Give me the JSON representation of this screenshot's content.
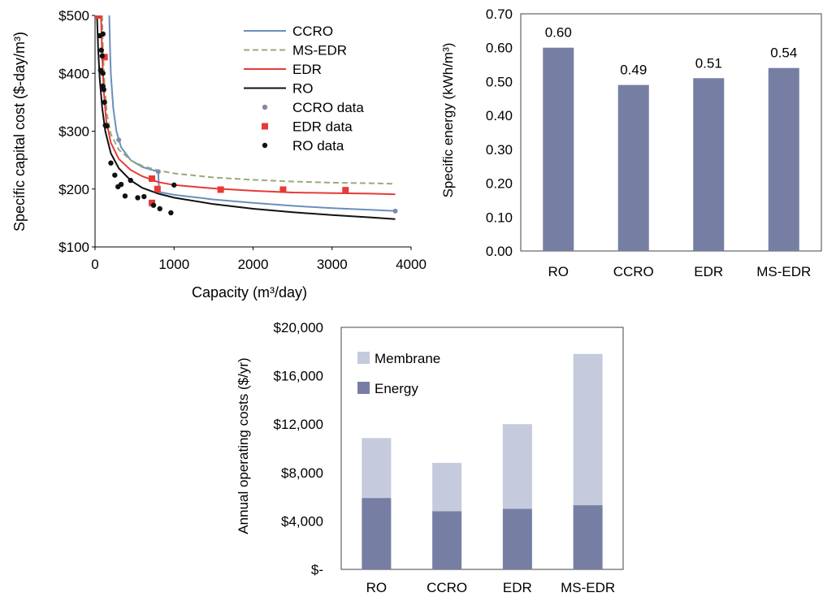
{
  "chart_data": [
    {
      "type": "line",
      "xlabel": "Capacity (m³/day)",
      "ylabel": "Specific capital cost ($-day/m³)",
      "xlim": [
        0,
        4000
      ],
      "ylim": [
        100,
        500
      ],
      "x_ticks": [
        "0",
        "1000",
        "2000",
        "3000",
        "4000"
      ],
      "y_ticks": [
        "$100",
        "$200",
        "$300",
        "$400",
        "$500"
      ],
      "legend_position": "top-right",
      "series": [
        {
          "name": "CCRO",
          "style": "line",
          "color": "#6a8fbc",
          "points": [
            [
              180,
              500
            ],
            [
              190,
              440
            ],
            [
              200,
              400
            ],
            [
              230,
              340
            ],
            [
              270,
              300
            ],
            [
              330,
              272
            ],
            [
              450,
              250
            ],
            [
              600,
              238
            ],
            [
              800,
              230
            ],
            [
              810,
              195
            ],
            [
              1000,
              190
            ],
            [
              1500,
              182
            ],
            [
              2000,
              176
            ],
            [
              2500,
              171
            ],
            [
              3000,
              167
            ],
            [
              3500,
              164
            ],
            [
              3800,
              162
            ]
          ]
        },
        {
          "name": "MS-EDR",
          "style": "dashed",
          "color": "#9aaa7a",
          "points": [
            [
              90,
              500
            ],
            [
              100,
              440
            ],
            [
              120,
              380
            ],
            [
              150,
              330
            ],
            [
              200,
              295
            ],
            [
              300,
              268
            ],
            [
              450,
              250
            ],
            [
              600,
              240
            ],
            [
              800,
              232
            ],
            [
              1000,
              227
            ],
            [
              1500,
              220
            ],
            [
              2000,
              216
            ],
            [
              2500,
              213
            ],
            [
              3000,
              211
            ],
            [
              3500,
              210
            ],
            [
              3800,
              209
            ]
          ]
        },
        {
          "name": "EDR",
          "style": "line",
          "color": "#e63a36",
          "points": [
            [
              75,
              500
            ],
            [
              90,
              430
            ],
            [
              110,
              370
            ],
            [
              140,
              320
            ],
            [
              200,
              280
            ],
            [
              300,
              252
            ],
            [
              450,
              233
            ],
            [
              600,
              222
            ],
            [
              800,
              212
            ],
            [
              1000,
              207
            ],
            [
              1500,
              201
            ],
            [
              2000,
              197
            ],
            [
              2500,
              194
            ],
            [
              3000,
              193
            ],
            [
              3500,
              192
            ],
            [
              3800,
              191
            ]
          ]
        },
        {
          "name": "RO",
          "style": "line",
          "color": "#111111",
          "points": [
            [
              25,
              500
            ],
            [
              40,
              440
            ],
            [
              60,
              390
            ],
            [
              90,
              340
            ],
            [
              130,
              300
            ],
            [
              200,
              262
            ],
            [
              300,
              236
            ],
            [
              450,
              215
            ],
            [
              600,
              202
            ],
            [
              800,
              192
            ],
            [
              1000,
              185
            ],
            [
              1500,
              174
            ],
            [
              2000,
              166
            ],
            [
              2500,
              160
            ],
            [
              3000,
              155
            ],
            [
              3500,
              151
            ],
            [
              3800,
              148
            ]
          ]
        },
        {
          "name": "CCRO data",
          "style": "circle",
          "color": "#8088b0",
          "points": [
            [
              300,
              285
            ],
            [
              800,
              230
            ],
            [
              3800,
              162
            ]
          ]
        },
        {
          "name": "EDR data",
          "style": "square",
          "color": "#e63a36",
          "points": [
            [
              40,
              500
            ],
            [
              120,
              428
            ],
            [
              720,
              218
            ],
            [
              720,
              176
            ],
            [
              790,
              200
            ],
            [
              1590,
              199
            ],
            [
              2380,
              199
            ],
            [
              3170,
              198
            ]
          ]
        },
        {
          "name": "RO data",
          "style": "dot",
          "color": "#111111",
          "points": [
            [
              60,
              465
            ],
            [
              70,
              405
            ],
            [
              80,
              440
            ],
            [
              90,
              430
            ],
            [
              100,
              468
            ],
            [
              100,
              400
            ],
            [
              100,
              378
            ],
            [
              110,
              372
            ],
            [
              120,
              350
            ],
            [
              130,
              310
            ],
            [
              150,
              309
            ],
            [
              200,
              245
            ],
            [
              250,
              224
            ],
            [
              290,
              204
            ],
            [
              330,
              208
            ],
            [
              380,
              188
            ],
            [
              450,
              215
            ],
            [
              540,
              185
            ],
            [
              620,
              187
            ],
            [
              740,
              172
            ],
            [
              820,
              166
            ],
            [
              960,
              159
            ],
            [
              1000,
              207
            ]
          ]
        }
      ]
    },
    {
      "type": "bar",
      "ylabel": "Specific energy (kWh/m³)",
      "ylim": [
        0,
        0.7
      ],
      "y_ticks": [
        "0.00",
        "0.10",
        "0.20",
        "0.30",
        "0.40",
        "0.50",
        "0.60",
        "0.70"
      ],
      "categories": [
        "RO",
        "CCRO",
        "EDR",
        "MS-EDR"
      ],
      "values": [
        0.6,
        0.49,
        0.51,
        0.54
      ],
      "value_labels": [
        "0.60",
        "0.49",
        "0.51",
        "0.54"
      ],
      "bar_color": "#767fa3"
    },
    {
      "type": "bar",
      "stacked": true,
      "ylabel": "Annual operating costs ($/yr)",
      "ylim": [
        0,
        20000
      ],
      "y_ticks": [
        "$-",
        "$4,000",
        "$8,000",
        "$12,000",
        "$16,000",
        "$20,000"
      ],
      "categories": [
        "RO",
        "CCRO",
        "EDR",
        "MS-EDR"
      ],
      "legend_position": "top-left",
      "series": [
        {
          "name": "Energy",
          "color": "#767fa3",
          "values": [
            5900,
            4800,
            5000,
            5300
          ]
        },
        {
          "name": "Membrane",
          "color": "#c5cadc",
          "values": [
            4950,
            4000,
            7000,
            12500
          ]
        }
      ]
    }
  ]
}
